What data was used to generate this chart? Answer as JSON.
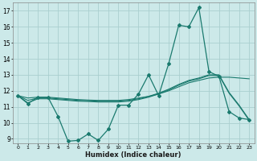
{
  "xlabel": "Humidex (Indice chaleur)",
  "bg_color": "#cce9e9",
  "grid_color": "#aacfcf",
  "line_color": "#1a7a6e",
  "xlim": [
    -0.5,
    23.5
  ],
  "ylim": [
    8.7,
    17.5
  ],
  "xticks": [
    0,
    1,
    2,
    3,
    4,
    5,
    6,
    7,
    8,
    9,
    10,
    11,
    12,
    13,
    14,
    15,
    16,
    17,
    18,
    19,
    20,
    21,
    22,
    23
  ],
  "yticks": [
    9,
    10,
    11,
    12,
    13,
    14,
    15,
    16,
    17
  ],
  "line1_x": [
    0,
    1,
    2,
    3,
    4,
    5,
    6,
    7,
    8,
    9,
    10,
    11,
    12,
    13,
    14,
    15,
    16,
    17,
    18,
    19,
    20,
    21,
    22,
    23
  ],
  "line1_y": [
    11.7,
    11.2,
    11.6,
    11.6,
    10.4,
    8.85,
    8.9,
    9.3,
    8.9,
    9.6,
    11.1,
    11.1,
    11.8,
    13.0,
    11.7,
    13.7,
    16.1,
    16.0,
    17.2,
    13.2,
    12.9,
    10.7,
    10.3,
    10.2
  ],
  "line2_x": [
    0,
    1,
    2,
    3,
    4,
    5,
    6,
    7,
    8,
    9,
    10,
    11,
    12,
    13,
    14,
    15,
    16,
    17,
    18,
    19,
    20,
    21,
    22,
    23
  ],
  "line2_y": [
    11.7,
    11.55,
    11.6,
    11.6,
    11.55,
    11.5,
    11.45,
    11.42,
    11.4,
    11.4,
    11.4,
    11.45,
    11.55,
    11.65,
    11.8,
    12.0,
    12.25,
    12.5,
    12.65,
    12.8,
    12.85,
    12.85,
    12.8,
    12.75
  ],
  "line3_x": [
    0,
    1,
    2,
    3,
    4,
    5,
    6,
    7,
    8,
    9,
    10,
    11,
    12,
    13,
    14,
    15,
    16,
    17,
    18,
    19,
    20,
    21,
    22,
    23
  ],
  "line3_y": [
    11.7,
    11.4,
    11.55,
    11.55,
    11.5,
    11.45,
    11.4,
    11.38,
    11.35,
    11.35,
    11.35,
    11.4,
    11.5,
    11.65,
    11.85,
    12.1,
    12.4,
    12.65,
    12.8,
    13.0,
    13.0,
    11.9,
    11.1,
    10.2
  ],
  "line4_x": [
    0,
    1,
    2,
    3,
    4,
    5,
    6,
    7,
    8,
    9,
    10,
    11,
    12,
    13,
    14,
    15,
    16,
    17,
    18,
    19,
    20,
    21,
    22,
    23
  ],
  "line4_y": [
    11.7,
    11.25,
    11.5,
    11.5,
    11.45,
    11.4,
    11.35,
    11.33,
    11.3,
    11.3,
    11.3,
    11.35,
    11.45,
    11.6,
    11.8,
    12.05,
    12.35,
    12.6,
    12.75,
    12.95,
    12.95,
    11.85,
    11.05,
    10.15
  ]
}
